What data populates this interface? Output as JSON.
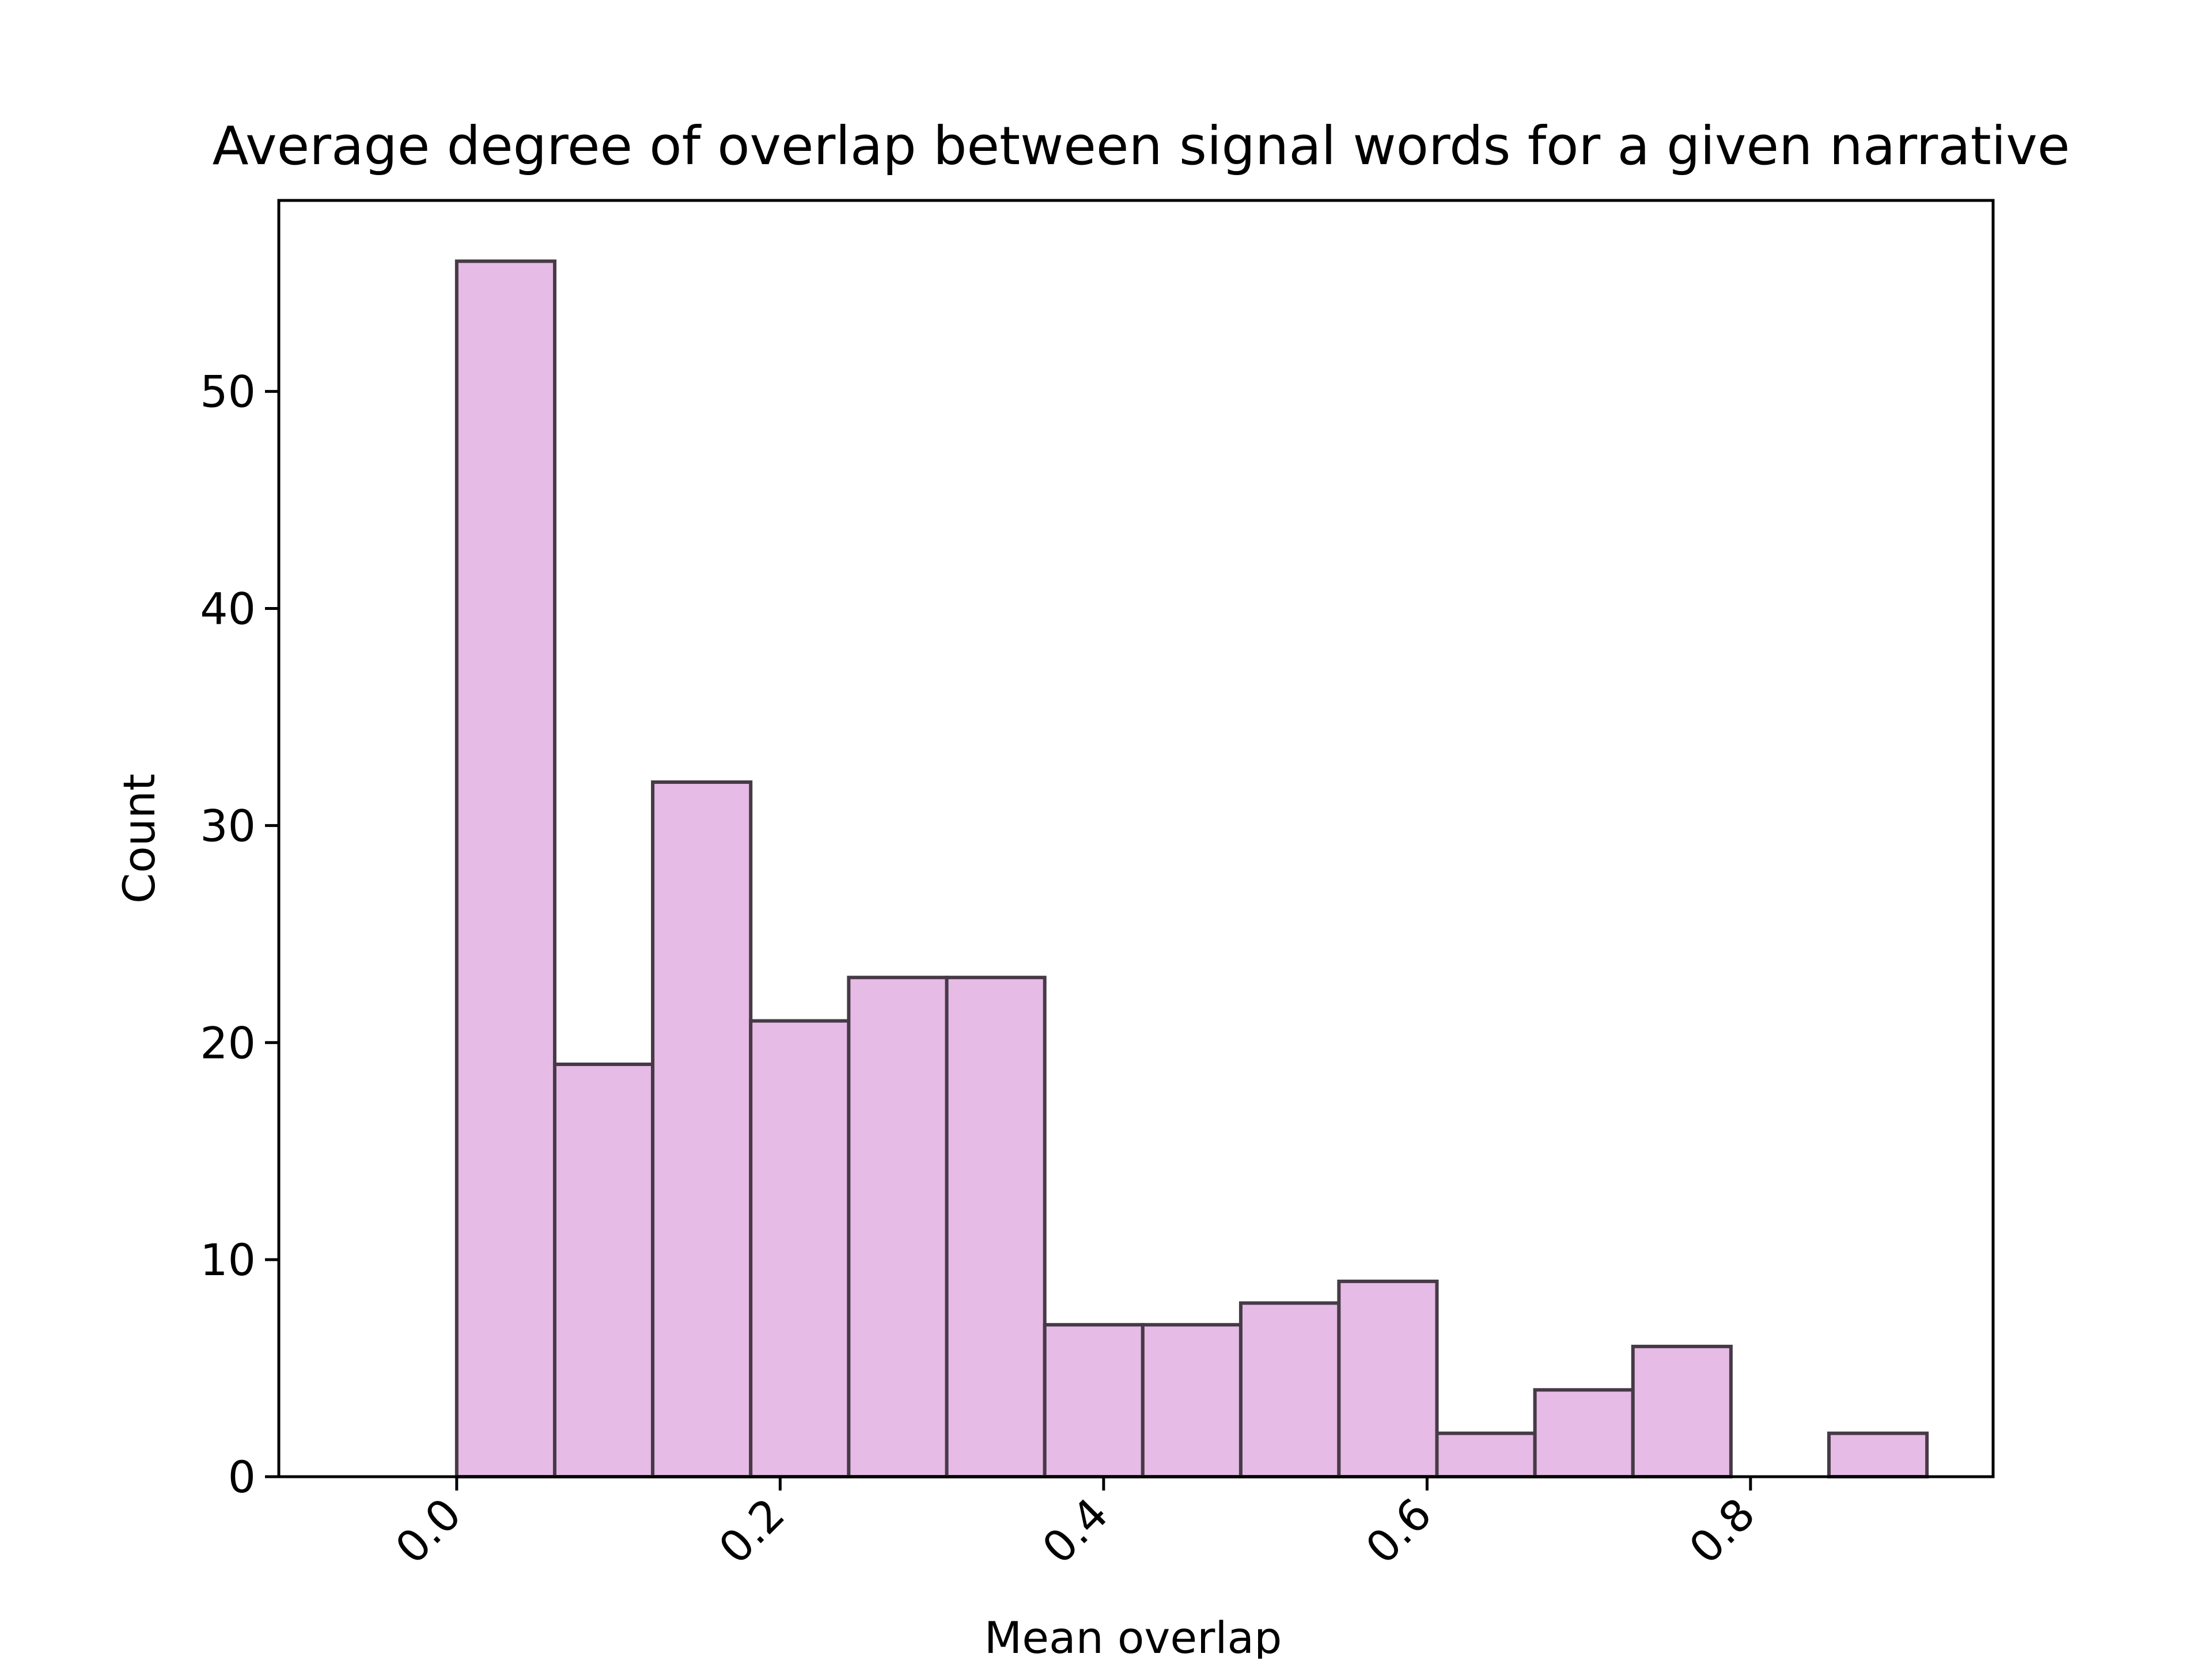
{
  "chart_data": {
    "type": "bar",
    "title": "Average degree of overlap between signal words for a given narrative",
    "xlabel": "Mean overlap",
    "ylabel": "Count",
    "xlim": [
      -0.11,
      0.95
    ],
    "ylim": [
      0,
      58.8
    ],
    "xticks": [
      0.0,
      0.2,
      0.4,
      0.6,
      0.8
    ],
    "xtick_labels": [
      "0.0",
      "0.2",
      "0.4",
      "0.6",
      "0.8"
    ],
    "yticks": [
      0,
      10,
      20,
      30,
      40,
      50
    ],
    "ytick_labels": [
      "0",
      "10",
      "20",
      "30",
      "40",
      "50"
    ],
    "bin_edges": [
      0.0,
      0.0606,
      0.1212,
      0.1818,
      0.2424,
      0.303,
      0.3636,
      0.4242,
      0.4848,
      0.5455,
      0.6061,
      0.6667,
      0.7273,
      0.7879,
      0.8485,
      0.9091
    ],
    "counts": [
      56,
      19,
      32,
      21,
      23,
      23,
      7,
      7,
      8,
      9,
      2,
      4,
      6,
      0,
      2
    ],
    "grid": false,
    "legend": false,
    "colors": {
      "bar_fill": "#e6bbe5",
      "bar_edge": "#463a46",
      "axes": "#000000"
    }
  }
}
